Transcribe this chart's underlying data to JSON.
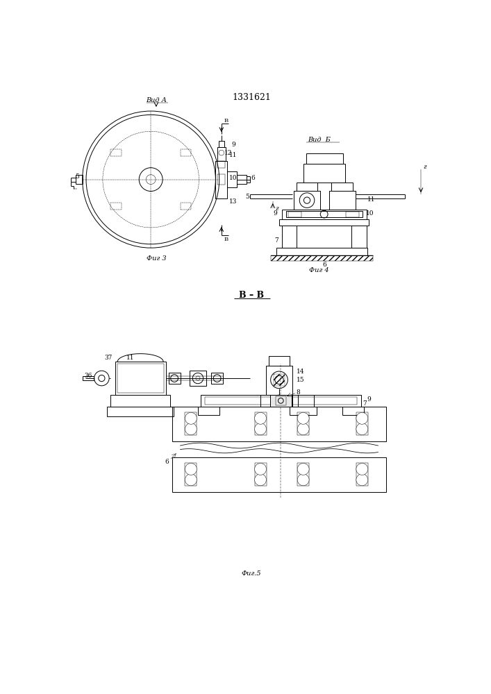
{
  "title": "1331621",
  "bg_color": "#ffffff",
  "lw": 0.7,
  "tlw": 0.35,
  "fig3_label": "Фиг 3",
  "fig4_label": "Фиг 4",
  "fig5_label": "Фиг.5",
  "vid_a_label": "Вид А",
  "vid_b_label": "Вид  Б",
  "section_label": "В – В"
}
